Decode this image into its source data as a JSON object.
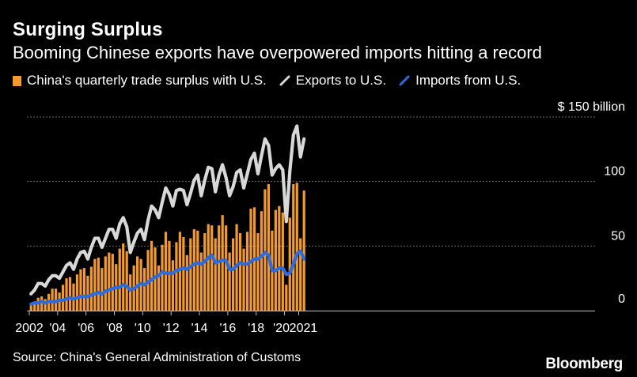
{
  "title": "Surging Surplus",
  "subtitle": "Booming Chinese exports have overpowered imports hitting a record",
  "legend": {
    "surplus": "China's quarterly trade surplus with U.S.",
    "exports": "Exports to U.S.",
    "imports": "Imports from U.S."
  },
  "source": "Source: China's General Administration of Customs",
  "brand": "Bloomberg",
  "colors": {
    "background": "#000000",
    "surplus": "#F29A2E",
    "exports": "#D8D8D8",
    "imports": "#2E6BDB",
    "grid": "#6a6a6a",
    "text": "#ffffff"
  },
  "chart_data": {
    "type": "bar+line",
    "title": "Surging Surplus",
    "subtitle": "Booming Chinese exports have overpowered imports hitting a record",
    "unit_label": "$ 150 billion",
    "xlabel": "",
    "ylabel": "",
    "ylim": [
      0,
      150
    ],
    "y_ticks": [
      {
        "value": 150,
        "label": "$ 150 billion"
      },
      {
        "value": 100,
        "label": "100"
      },
      {
        "value": 50,
        "label": "50"
      },
      {
        "value": 0,
        "label": "0"
      }
    ],
    "x_ticks": [
      {
        "year": 2002,
        "label": "2002"
      },
      {
        "year": 2004,
        "label": "'04"
      },
      {
        "year": 2006,
        "label": "'06"
      },
      {
        "year": 2008,
        "label": "'08"
      },
      {
        "year": 2010,
        "label": "'10"
      },
      {
        "year": 2012,
        "label": "'12"
      },
      {
        "year": 2014,
        "label": "'14"
      },
      {
        "year": 2016,
        "label": "'16"
      },
      {
        "year": 2018,
        "label": "'18"
      },
      {
        "year": 2020,
        "label": "'20"
      },
      {
        "year": 2021,
        "label": "2021"
      }
    ],
    "quarters": [
      "2002Q1",
      "2002Q2",
      "2002Q3",
      "2002Q4",
      "2003Q1",
      "2003Q2",
      "2003Q3",
      "2003Q4",
      "2004Q1",
      "2004Q2",
      "2004Q3",
      "2004Q4",
      "2005Q1",
      "2005Q2",
      "2005Q3",
      "2005Q4",
      "2006Q1",
      "2006Q2",
      "2006Q3",
      "2006Q4",
      "2007Q1",
      "2007Q2",
      "2007Q3",
      "2007Q4",
      "2008Q1",
      "2008Q2",
      "2008Q3",
      "2008Q4",
      "2009Q1",
      "2009Q2",
      "2009Q3",
      "2009Q4",
      "2010Q1",
      "2010Q2",
      "2010Q3",
      "2010Q4",
      "2011Q1",
      "2011Q2",
      "2011Q3",
      "2011Q4",
      "2012Q1",
      "2012Q2",
      "2012Q3",
      "2012Q4",
      "2013Q1",
      "2013Q2",
      "2013Q3",
      "2013Q4",
      "2014Q1",
      "2014Q2",
      "2014Q3",
      "2014Q4",
      "2015Q1",
      "2015Q2",
      "2015Q3",
      "2015Q4",
      "2016Q1",
      "2016Q2",
      "2016Q3",
      "2016Q4",
      "2017Q1",
      "2017Q2",
      "2017Q3",
      "2017Q4",
      "2018Q1",
      "2018Q2",
      "2018Q3",
      "2018Q4",
      "2019Q1",
      "2019Q2",
      "2019Q3",
      "2019Q4",
      "2020Q1",
      "2020Q2",
      "2020Q3",
      "2020Q4",
      "2021Q1",
      "2021Q2"
    ],
    "series": [
      {
        "name": "China's quarterly trade surplus with U.S.",
        "type": "bar",
        "values": [
          5,
          7,
          10,
          11,
          9,
          13,
          17,
          17,
          14,
          20,
          25,
          26,
          21,
          28,
          32,
          33,
          27,
          34,
          40,
          41,
          33,
          42,
          45,
          44,
          36,
          48,
          52,
          46,
          28,
          35,
          42,
          40,
          33,
          47,
          54,
          49,
          35,
          51,
          61,
          54,
          39,
          53,
          61,
          57,
          43,
          56,
          63,
          62,
          45,
          60,
          67,
          66,
          56,
          66,
          74,
          66,
          45,
          56,
          67,
          60,
          48,
          61,
          79,
          80,
          60,
          77,
          94,
          98,
          62,
          78,
          81,
          76,
          20,
          72,
          98,
          99,
          56,
          93
        ]
      },
      {
        "name": "Exports to U.S.",
        "type": "line",
        "values": [
          13,
          16,
          21,
          21,
          19,
          24,
          27,
          27,
          25,
          30,
          35,
          37,
          32,
          40,
          45,
          46,
          40,
          49,
          56,
          56,
          49,
          56,
          63,
          63,
          56,
          67,
          72,
          65,
          45,
          53,
          60,
          63,
          55,
          70,
          81,
          78,
          72,
          84,
          95,
          90,
          81,
          93,
          94,
          93,
          82,
          91,
          101,
          105,
          89,
          101,
          111,
          110,
          92,
          105,
          113,
          103,
          89,
          96,
          107,
          109,
          95,
          106,
          117,
          122,
          106,
          120,
          133,
          128,
          105,
          110,
          113,
          109,
          69,
          108,
          136,
          143,
          119,
          133
        ]
      },
      {
        "name": "Imports from U.S.",
        "type": "line",
        "values": [
          5,
          6,
          6,
          7,
          6,
          7,
          7,
          7,
          8,
          8,
          9,
          10,
          9,
          10,
          11,
          11,
          11,
          12,
          13,
          14,
          13,
          15,
          16,
          17,
          18,
          18,
          20,
          19,
          16,
          17,
          19,
          21,
          20,
          22,
          24,
          26,
          27,
          30,
          29,
          29,
          29,
          31,
          32,
          33,
          32,
          34,
          36,
          37,
          36,
          38,
          41,
          43,
          37,
          38,
          39,
          39,
          32,
          32,
          35,
          37,
          36,
          36,
          38,
          40,
          40,
          42,
          45,
          43,
          31,
          31,
          33,
          33,
          28,
          29,
          36,
          44,
          46,
          40
        ]
      }
    ]
  }
}
